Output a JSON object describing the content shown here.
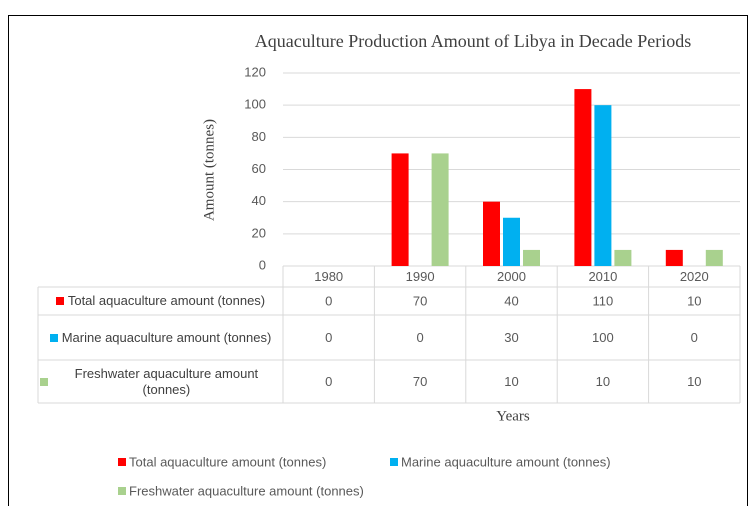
{
  "chart_data": {
    "type": "bar",
    "title": "Aquaculture Production Amount of Libya in Decade Periods",
    "x_label": "Years",
    "y_label": "Amount (tonnes)",
    "categories": [
      "1980",
      "1990",
      "2000",
      "2010",
      "2020"
    ],
    "series": [
      {
        "name": "Total aquaculture amount (tonnes)",
        "color": "#ff0000",
        "values": [
          0,
          70,
          40,
          110,
          10
        ]
      },
      {
        "name": "Marine aquaculture amount (tonnes)",
        "color": "#00b0f0",
        "values": [
          0,
          0,
          30,
          100,
          0
        ]
      },
      {
        "name": "Freshwater aquaculture amount (tonnes)",
        "color": "#a9d18e",
        "values": [
          0,
          70,
          10,
          10,
          10
        ]
      }
    ],
    "ylim": [
      0,
      120
    ],
    "yticks": [
      0,
      20,
      40,
      60,
      80,
      100,
      120
    ],
    "grid": true,
    "legend": "bottom"
  }
}
